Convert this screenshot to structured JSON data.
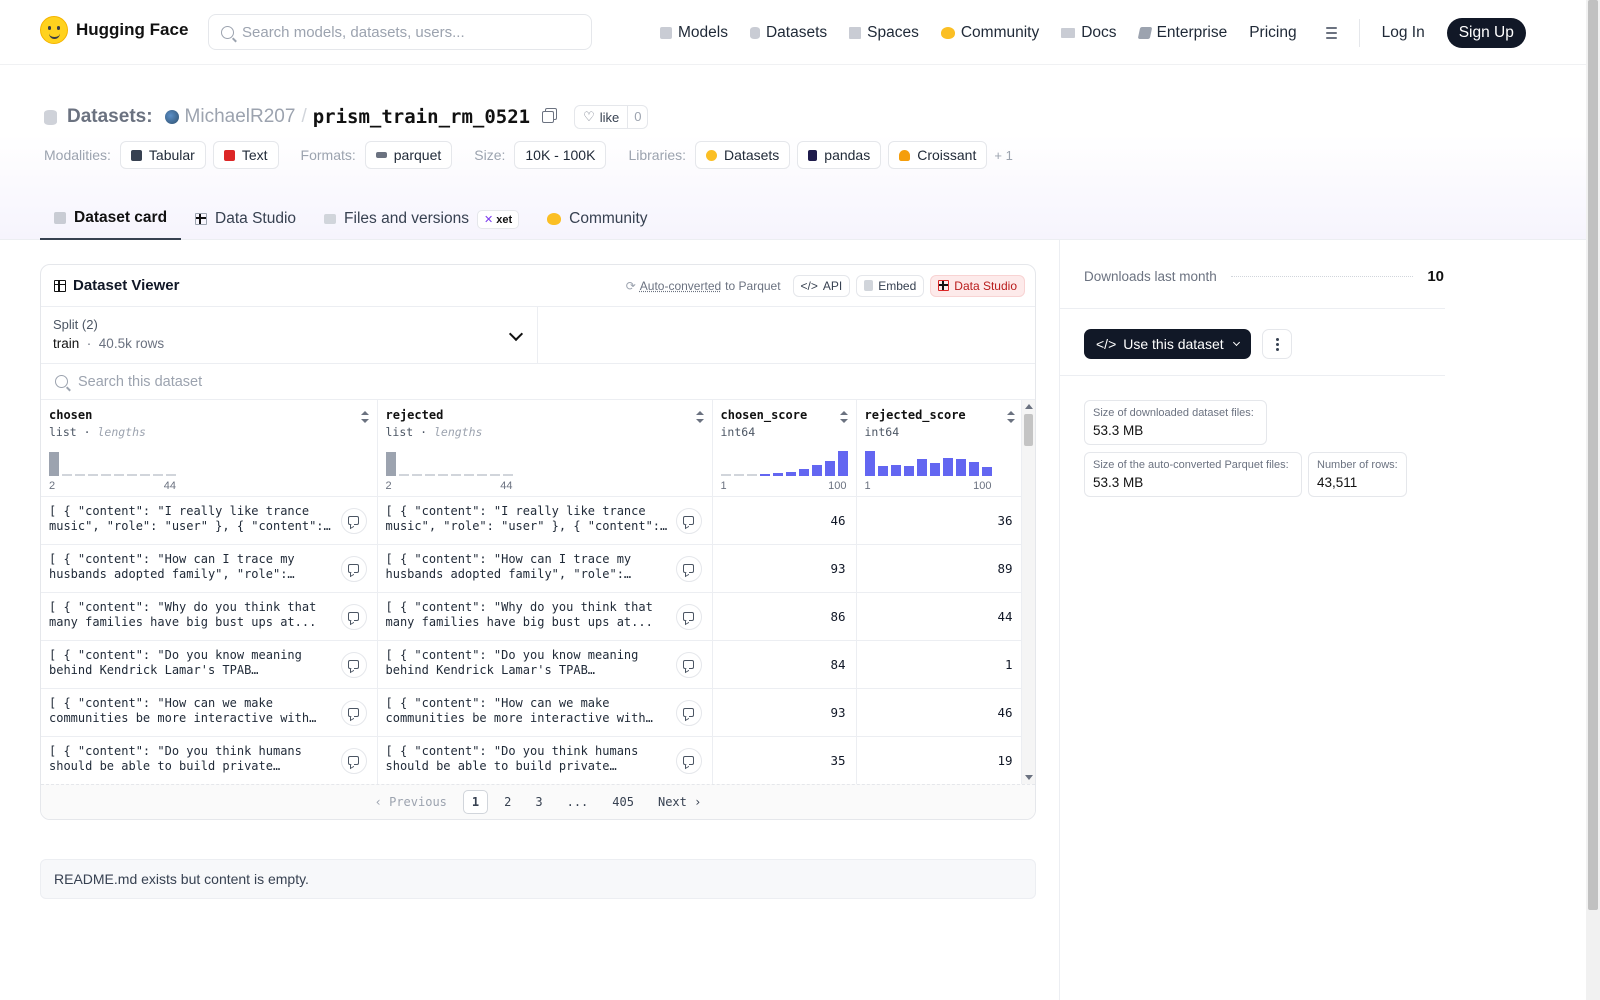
{
  "header": {
    "brand": "Hugging Face",
    "search_placeholder": "Search models, datasets, users...",
    "nav": [
      {
        "label": "Models",
        "icon": "cube-icon"
      },
      {
        "label": "Datasets",
        "icon": "database-icon"
      },
      {
        "label": "Spaces",
        "icon": "grid-icon"
      },
      {
        "label": "Community",
        "icon": "hug-icon"
      },
      {
        "label": "Docs",
        "icon": "book-icon"
      },
      {
        "label": "Enterprise",
        "icon": "briefcase-icon"
      },
      {
        "label": "Pricing"
      }
    ],
    "login": "Log In",
    "signup": "Sign Up"
  },
  "repo": {
    "kind": "Datasets:",
    "owner": "MichaelR207",
    "separator": "/",
    "name": "prism_train_rm_0521",
    "like_label": "like",
    "like_count": "0"
  },
  "tags": {
    "modalities_label": "Modalities:",
    "modalities": [
      "Tabular",
      "Text"
    ],
    "formats_label": "Formats:",
    "formats": [
      "parquet"
    ],
    "size_label": "Size:",
    "size": "10K - 100K",
    "libraries_label": "Libraries:",
    "libraries": [
      "Datasets",
      "pandas",
      "Croissant"
    ],
    "more": "+ 1"
  },
  "tabs": [
    {
      "label": "Dataset card",
      "active": true
    },
    {
      "label": "Data Studio"
    },
    {
      "label": "Files and versions",
      "badge": "xet"
    },
    {
      "label": "Community"
    }
  ],
  "viewer": {
    "title": "Dataset Viewer",
    "auto_converted": "Auto-converted",
    "to_parquet": "to Parquet",
    "api": "API",
    "embed": "Embed",
    "data_studio": "Data Studio",
    "split_label": "Split (2)",
    "split_name": "train",
    "split_rows": "40.5k rows",
    "search_placeholder": "Search this dataset",
    "columns": [
      {
        "name": "chosen",
        "type": "list",
        "sub": "lengths",
        "hist_min": "2",
        "hist_max": "44",
        "hist": [
          0.85,
          0.05,
          0.02,
          0.02,
          0.02,
          0.02,
          0.02,
          0.02,
          0.02,
          0.02
        ],
        "gray": true
      },
      {
        "name": "rejected",
        "type": "list",
        "sub": "lengths",
        "hist_min": "2",
        "hist_max": "44",
        "hist": [
          0.85,
          0.05,
          0.02,
          0.02,
          0.02,
          0.02,
          0.02,
          0.02,
          0.02,
          0.02
        ],
        "gray": true
      },
      {
        "name": "chosen_score",
        "type": "int64",
        "sub": "",
        "hist_min": "1",
        "hist_max": "100",
        "hist": [
          0.03,
          0.04,
          0.05,
          0.07,
          0.1,
          0.15,
          0.25,
          0.4,
          0.55,
          0.9
        ],
        "gray": false
      },
      {
        "name": "rejected_score",
        "type": "int64",
        "sub": "",
        "hist_min": "1",
        "hist_max": "100",
        "hist": [
          0.9,
          0.35,
          0.38,
          0.36,
          0.62,
          0.48,
          0.63,
          0.6,
          0.5,
          0.32
        ],
        "gray": false
      }
    ],
    "rows": [
      {
        "chosen": "[ { \"content\": \"I really like trance music\", \"role\": \"user\" }, { \"content\": ...",
        "rejected": "[ { \"content\": \"I really like trance music\", \"role\": \"user\" }, { \"content\": ...",
        "chosen_score": "46",
        "rejected_score": "36"
      },
      {
        "chosen": "[ { \"content\": \"How can I trace my husbands adopted family\", \"role\": \"user\"...",
        "rejected": "[ { \"content\": \"How can I trace my husbands adopted family\", \"role\": \"user\"...",
        "chosen_score": "93",
        "rejected_score": "89"
      },
      {
        "chosen": "[ { \"content\": \"Why do you think that many families have big bust ups at...",
        "rejected": "[ { \"content\": \"Why do you think that many families have big bust ups at...",
        "chosen_score": "86",
        "rejected_score": "44"
      },
      {
        "chosen": "[ { \"content\": \"Do you know meaning behind Kendrick Lamar's TPAB album?\",...",
        "rejected": "[ { \"content\": \"Do you know meaning behind Kendrick Lamar's TPAB album?\",...",
        "chosen_score": "84",
        "rejected_score": "1"
      },
      {
        "chosen": "[ { \"content\": \"How can we make communities be more interactive with eac...",
        "rejected": "[ { \"content\": \"How can we make communities be more interactive with eac...",
        "chosen_score": "93",
        "rejected_score": "46"
      },
      {
        "chosen": "[ { \"content\": \"Do you think humans should be able to build private building...",
        "rejected": "[ { \"content\": \"Do you think humans should be able to build private building...",
        "chosen_score": "35",
        "rejected_score": "19"
      }
    ],
    "pager": {
      "prev": "Previous",
      "pages": [
        "1",
        "2",
        "3",
        "...",
        "405"
      ],
      "current": "1",
      "next": "Next"
    }
  },
  "readme_note": "README.md exists but content is empty.",
  "sidebar": {
    "downloads_label": "Downloads last month",
    "downloads": "10",
    "use_button": "Use this dataset",
    "stats": [
      {
        "label": "Size of downloaded dataset files:",
        "value": "53.3 MB"
      },
      {
        "label": "Size of the auto-converted Parquet files:",
        "value": "53.3 MB"
      },
      {
        "label": "Number of rows:",
        "value": "43,511"
      }
    ]
  },
  "colors": {
    "accent": "#6366f1",
    "dark": "#111827",
    "studio_red": "#b91c1c"
  }
}
